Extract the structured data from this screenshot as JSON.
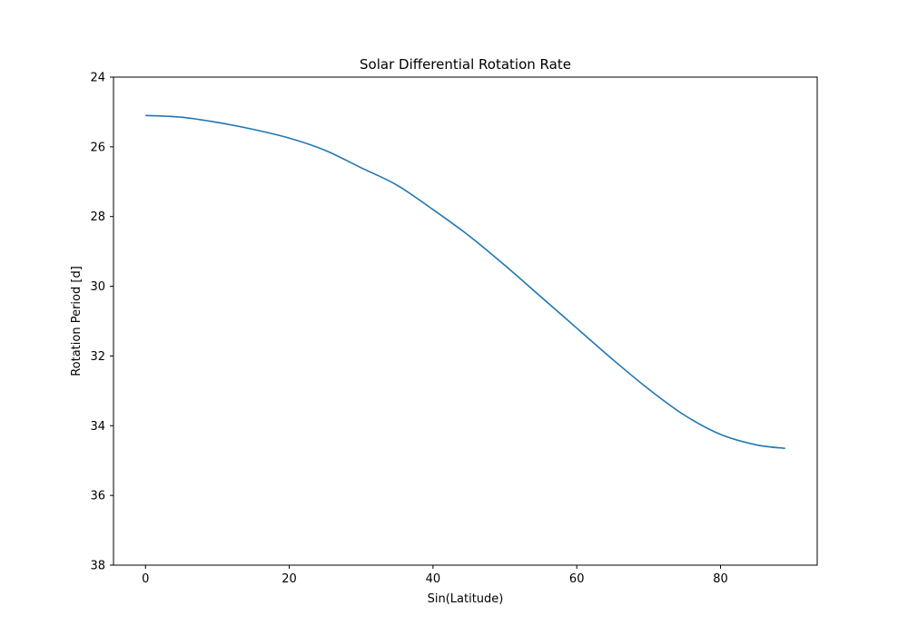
{
  "chart_data": {
    "type": "line",
    "title": "Solar Differential Rotation Rate",
    "xlabel": "Sin(Latitude)",
    "ylabel": "Rotation Period [d]",
    "xlim": [
      -4.45,
      93.45
    ],
    "ylim": [
      38,
      24
    ],
    "y_inverted": true,
    "xticks": [
      0,
      20,
      40,
      60,
      80
    ],
    "yticks": [
      24,
      26,
      28,
      30,
      32,
      34,
      36,
      38
    ],
    "grid": false,
    "series": [
      {
        "color": "#1f77b4",
        "x": [
          0,
          5,
          10,
          15,
          20,
          25,
          30,
          35,
          40,
          45,
          50,
          55,
          60,
          65,
          70,
          75,
          80,
          85,
          89
        ],
        "y": [
          25.1,
          25.15,
          25.3,
          25.5,
          25.75,
          26.1,
          26.6,
          27.1,
          27.8,
          28.55,
          29.4,
          30.3,
          31.2,
          32.1,
          32.95,
          33.7,
          34.25,
          34.55,
          34.65
        ]
      }
    ]
  }
}
